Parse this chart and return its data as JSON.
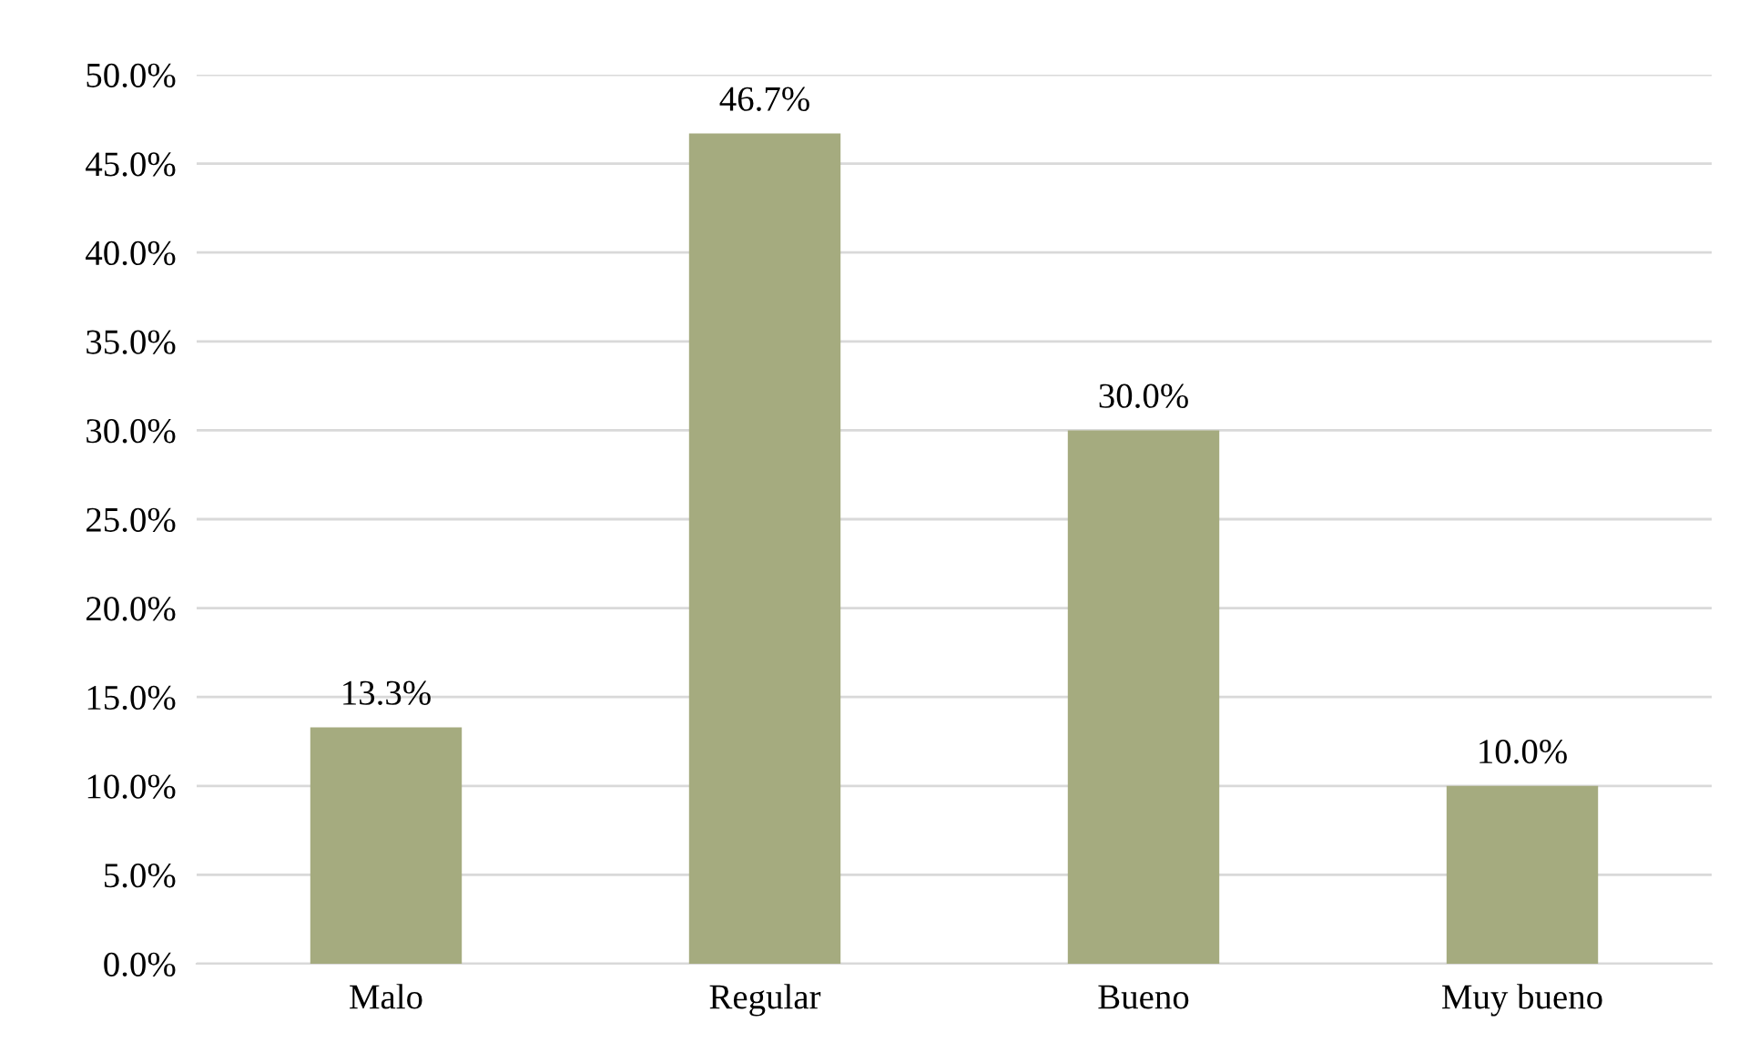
{
  "chart_data": {
    "type": "bar",
    "categories": [
      "Malo",
      "Regular",
      "Bueno",
      "Muy bueno"
    ],
    "values": [
      13.3,
      46.7,
      30.0,
      10.0
    ],
    "color": "#a5ab7f",
    "value_labels": [
      "13.3%",
      "46.7%",
      "30.0%",
      "10.0%"
    ],
    "ylim": [
      0,
      50
    ],
    "yticks": [
      {
        "value": 0,
        "label": "0.0%"
      },
      {
        "value": 5,
        "label": "5.0%"
      },
      {
        "value": 10,
        "label": "10.0%"
      },
      {
        "value": 15,
        "label": "15.0%"
      },
      {
        "value": 20,
        "label": "20.0%"
      },
      {
        "value": 25,
        "label": "25.0%"
      },
      {
        "value": 30,
        "label": "30.0%"
      },
      {
        "value": 35,
        "label": "35.0%"
      },
      {
        "value": 40,
        "label": "40.0%"
      },
      {
        "value": 45,
        "label": "45.0%"
      },
      {
        "value": 50,
        "label": "50.0%"
      }
    ],
    "grid": "y",
    "legend": false
  }
}
